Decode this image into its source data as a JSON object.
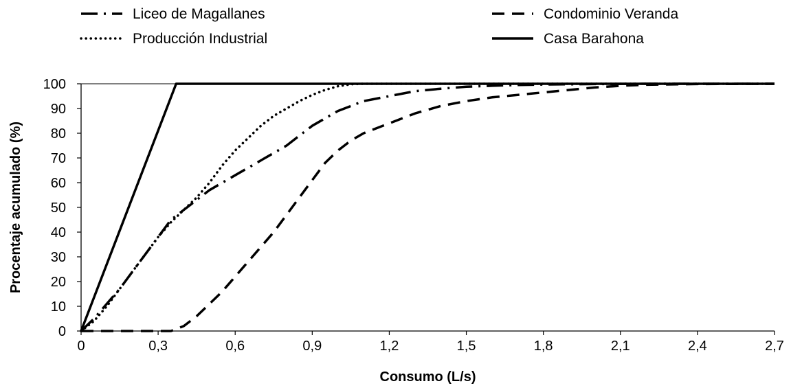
{
  "chart_data": {
    "type": "line",
    "title": "",
    "xlabel": "Consumo (L/s)",
    "ylabel": "Procentaje acumulado (%)",
    "xlim": [
      0,
      2.7
    ],
    "ylim": [
      0,
      100
    ],
    "x_ticks": [
      "0",
      "0,3",
      "0,6",
      "0,9",
      "1,2",
      "1,5",
      "1,8",
      "2,1",
      "2,4",
      "2,7"
    ],
    "y_ticks": [
      "0",
      "10",
      "20",
      "30",
      "40",
      "50",
      "60",
      "70",
      "80",
      "90",
      "100"
    ],
    "grid": false,
    "legend_position": "top",
    "series": [
      {
        "name": "Liceo de Magallanes",
        "style": "dash-dot",
        "color": "#000000",
        "x": [
          0,
          0.05,
          0.1,
          0.15,
          0.2,
          0.25,
          0.3,
          0.35,
          0.4,
          0.45,
          0.5,
          0.55,
          0.6,
          0.65,
          0.7,
          0.75,
          0.8,
          0.85,
          0.9,
          0.95,
          1.0,
          1.05,
          1.1,
          1.15,
          1.2,
          1.3,
          1.4,
          1.5,
          1.6,
          1.7,
          1.8,
          2.0,
          2.2,
          2.4,
          2.7
        ],
        "y": [
          0,
          5,
          11,
          17,
          24,
          31,
          38,
          45,
          49,
          53,
          57,
          60,
          63,
          66,
          69,
          72,
          75,
          79,
          83,
          86,
          89,
          91,
          93,
          94,
          95,
          97,
          98,
          98.8,
          99.2,
          99.5,
          99.7,
          99.9,
          100,
          100,
          100
        ]
      },
      {
        "name": "Condominio Veranda",
        "style": "dash",
        "color": "#000000",
        "x": [
          0,
          0.3,
          0.35,
          0.4,
          0.45,
          0.5,
          0.55,
          0.6,
          0.65,
          0.7,
          0.75,
          0.8,
          0.85,
          0.9,
          0.95,
          1.0,
          1.05,
          1.1,
          1.2,
          1.3,
          1.4,
          1.5,
          1.6,
          1.7,
          1.8,
          1.9,
          2.0,
          2.1,
          2.2,
          2.4,
          2.7
        ],
        "y": [
          0,
          0,
          0,
          2,
          6,
          11,
          16,
          22,
          28,
          34,
          40,
          47,
          54,
          61,
          68,
          73,
          77,
          80,
          84,
          88,
          91,
          93,
          94.5,
          95.5,
          96.5,
          97.5,
          98.5,
          99.2,
          99.6,
          99.9,
          100
        ]
      },
      {
        "name": "Producción Industrial",
        "style": "dot",
        "color": "#000000",
        "x": [
          0,
          0.05,
          0.1,
          0.15,
          0.2,
          0.25,
          0.3,
          0.35,
          0.4,
          0.45,
          0.5,
          0.55,
          0.6,
          0.65,
          0.7,
          0.75,
          0.8,
          0.85,
          0.9,
          0.95,
          1.0,
          1.05,
          1.1,
          1.2,
          1.5,
          2.0,
          2.7
        ],
        "y": [
          0,
          4,
          10,
          17,
          24,
          31,
          38,
          44,
          49,
          54,
          60,
          67,
          73,
          78,
          83,
          87,
          90,
          93,
          95.5,
          97.5,
          99,
          99.8,
          100,
          100,
          100,
          100,
          100
        ]
      },
      {
        "name": "Casa Barahona",
        "style": "solid",
        "color": "#000000",
        "x": [
          0,
          0.37,
          2.7
        ],
        "y": [
          0,
          100,
          100
        ]
      }
    ]
  }
}
